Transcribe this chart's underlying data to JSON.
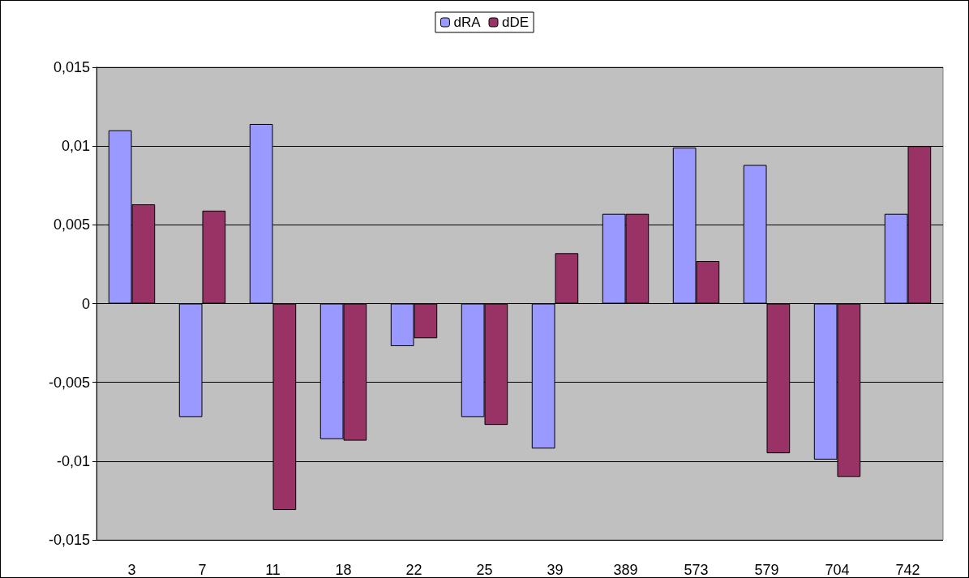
{
  "chart_data": {
    "type": "bar",
    "categories": [
      "3",
      "7",
      "11",
      "18",
      "22",
      "25",
      "39",
      "389",
      "573",
      "579",
      "704",
      "742"
    ],
    "series": [
      {
        "name": "dRA",
        "color": "#9999ff",
        "values": [
          0.011,
          -0.0072,
          0.0114,
          -0.0086,
          -0.0027,
          -0.0072,
          -0.0092,
          0.0057,
          0.0099,
          0.0088,
          -0.0099,
          0.0057
        ]
      },
      {
        "name": "dDE",
        "color": "#993366",
        "values": [
          0.0063,
          0.0059,
          -0.0131,
          -0.0087,
          -0.0022,
          -0.0077,
          0.0032,
          0.0057,
          0.0027,
          -0.0095,
          -0.011,
          0.01
        ]
      }
    ],
    "ylim": [
      -0.015,
      0.015
    ],
    "yticks": [
      {
        "value": -0.015,
        "label": "-0,015"
      },
      {
        "value": -0.01,
        "label": "-0,01"
      },
      {
        "value": -0.005,
        "label": "-0,005"
      },
      0,
      {
        "value": 0.005,
        "label": "0,005"
      },
      {
        "value": 0.01,
        "label": "0,01"
      },
      {
        "value": 0.015,
        "label": "0,015"
      }
    ],
    "grid": "y",
    "legend": "top"
  }
}
